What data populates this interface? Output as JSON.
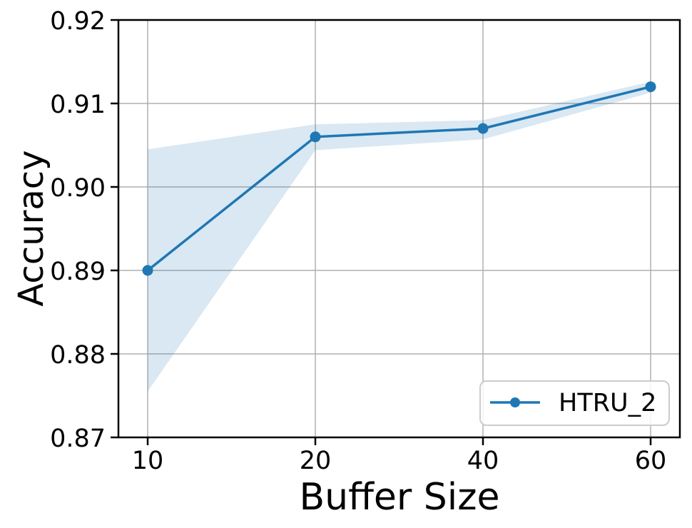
{
  "figure": {
    "background_color": "#ffffff"
  },
  "chart_data": {
    "type": "line",
    "xlabel": "Buffer Size",
    "ylabel": "Accuracy",
    "x_values": [
      10,
      20,
      40,
      60
    ],
    "xtick_labels": [
      "10",
      "20",
      "40",
      "60"
    ],
    "series": [
      {
        "name": "HTRU_2",
        "values": [
          0.89,
          0.906,
          0.907,
          0.912
        ],
        "band_upper": [
          0.9045,
          0.9075,
          0.908,
          0.9126
        ],
        "band_lower": [
          0.8755,
          0.9044,
          0.9057,
          0.9113
        ],
        "color": "#1f77b4",
        "band_opacity": 0.17,
        "marker": "circle"
      }
    ],
    "ylim": [
      0.87,
      0.92
    ],
    "yticks": [
      0.87,
      0.88,
      0.89,
      0.9,
      0.91,
      0.92
    ],
    "ytick_labels": [
      "0.87",
      "0.88",
      "0.89",
      "0.90",
      "0.91",
      "0.92"
    ],
    "grid": true,
    "grid_color": "#b0b0b0",
    "legend": {
      "position": "lower right",
      "entries": [
        "HTRU_2"
      ]
    }
  }
}
